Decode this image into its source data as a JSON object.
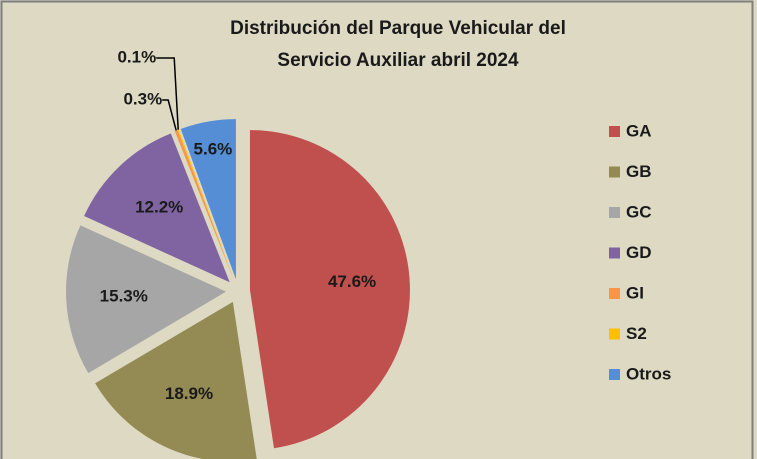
{
  "chart_data": {
    "type": "pie",
    "title": [
      "Distribución del Parque Vehicular del",
      "Servicio Auxiliar abril 2024"
    ],
    "categories": [
      "GA",
      "GB",
      "GC",
      "GD",
      "GI",
      "S2",
      "Otros"
    ],
    "values": [
      47.6,
      18.9,
      15.3,
      12.2,
      0.3,
      0.1,
      5.6
    ],
    "value_labels": [
      "47.6%",
      "18.9%",
      "15.3%",
      "12.2%",
      "0.3%",
      "0.1%",
      "5.6%"
    ],
    "colors": [
      "#c0504d",
      "#948a54",
      "#a6a6a6",
      "#8064a2",
      "#f79646",
      "#ffc000",
      "#558ed5"
    ],
    "legend": "right"
  }
}
